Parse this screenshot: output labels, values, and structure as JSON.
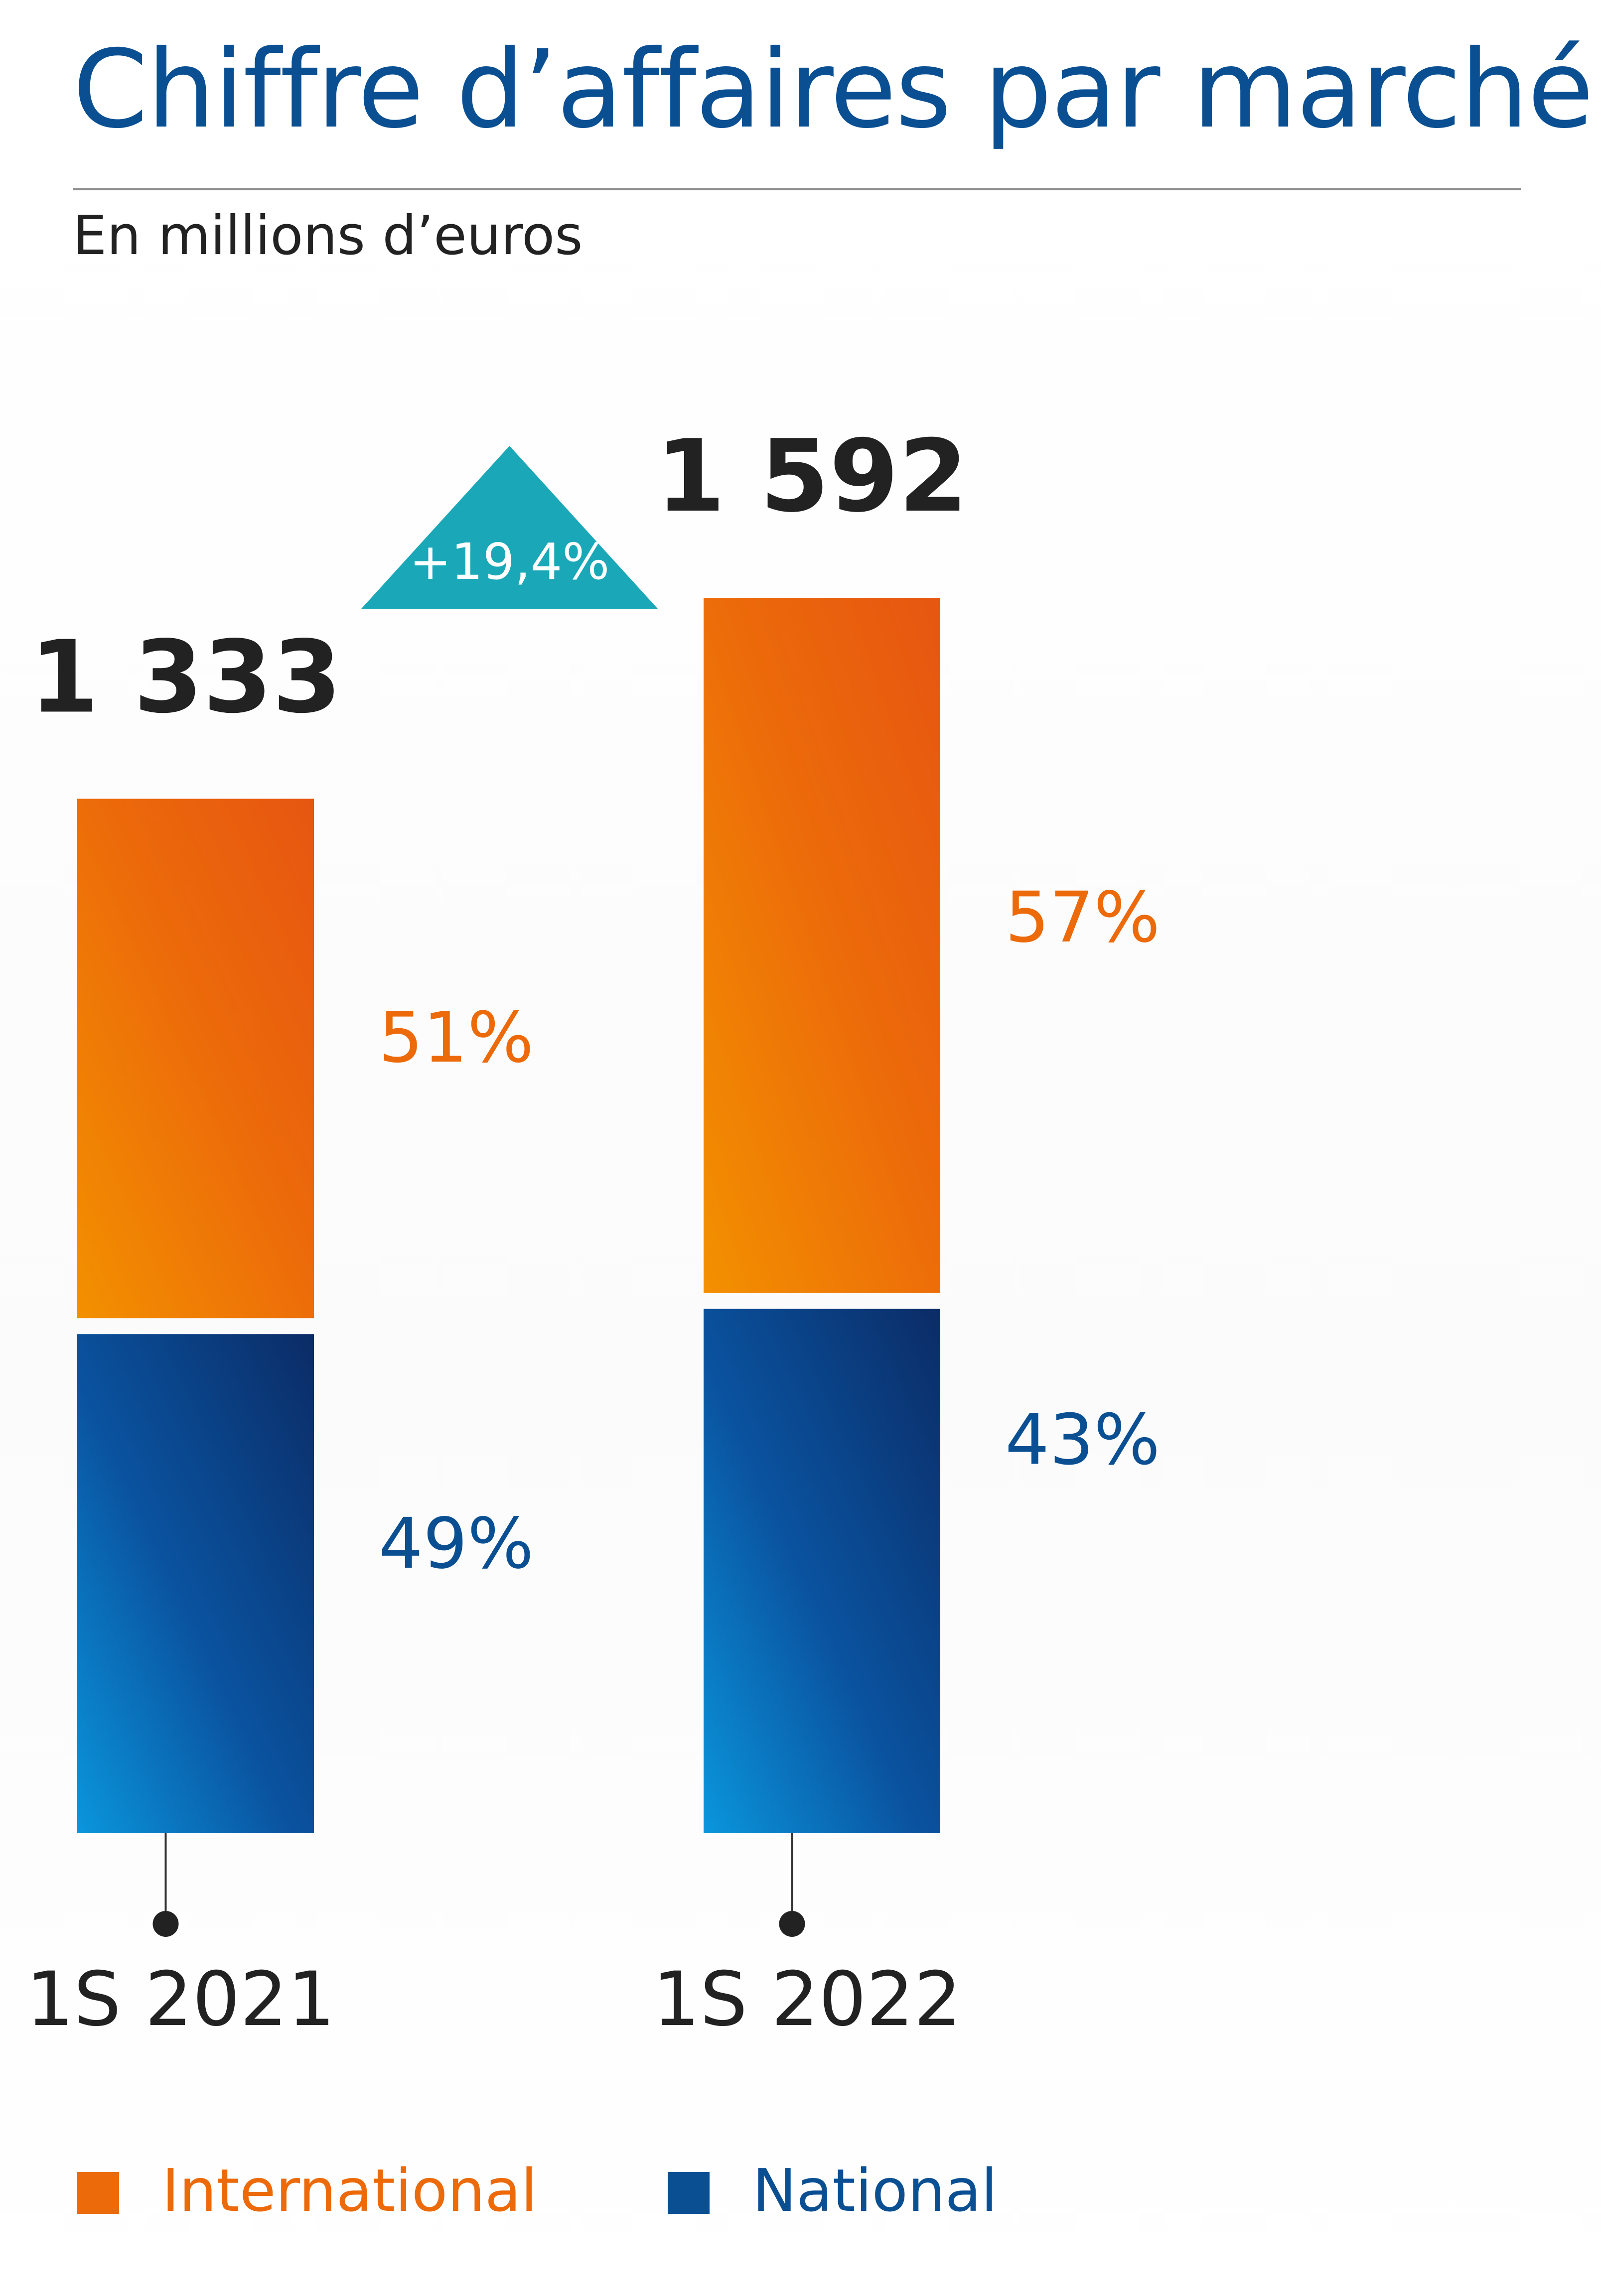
{
  "chart_data": {
    "type": "bar",
    "stacked": true,
    "title": "Chiffre d’affaires par marché",
    "subtitle": "En millions d’euros",
    "categories": [
      "1S 2021",
      "1S 2022"
    ],
    "totals": [
      1333,
      1592
    ],
    "totals_labels": [
      "1 333",
      "1 592"
    ],
    "growth_label": "+19,4%",
    "series": [
      {
        "name": "National",
        "values": [
          653.17,
          684.56
        ],
        "percent_labels": [
          "49%",
          "43%"
        ],
        "color": "#0b4f93"
      },
      {
        "name": "International",
        "values": [
          679.83,
          907.44
        ],
        "percent_labels": [
          "51%",
          "57%"
        ],
        "color": "#ec6a0a"
      }
    ],
    "ylim": [
      0,
      1592
    ],
    "grid": false,
    "legend": "bottom"
  },
  "colors": {
    "title": "#0b4f93",
    "international": "#ec6a0a",
    "national": "#0b4f93",
    "growth_badge": "#1aa8b8",
    "totals": "#222222"
  }
}
